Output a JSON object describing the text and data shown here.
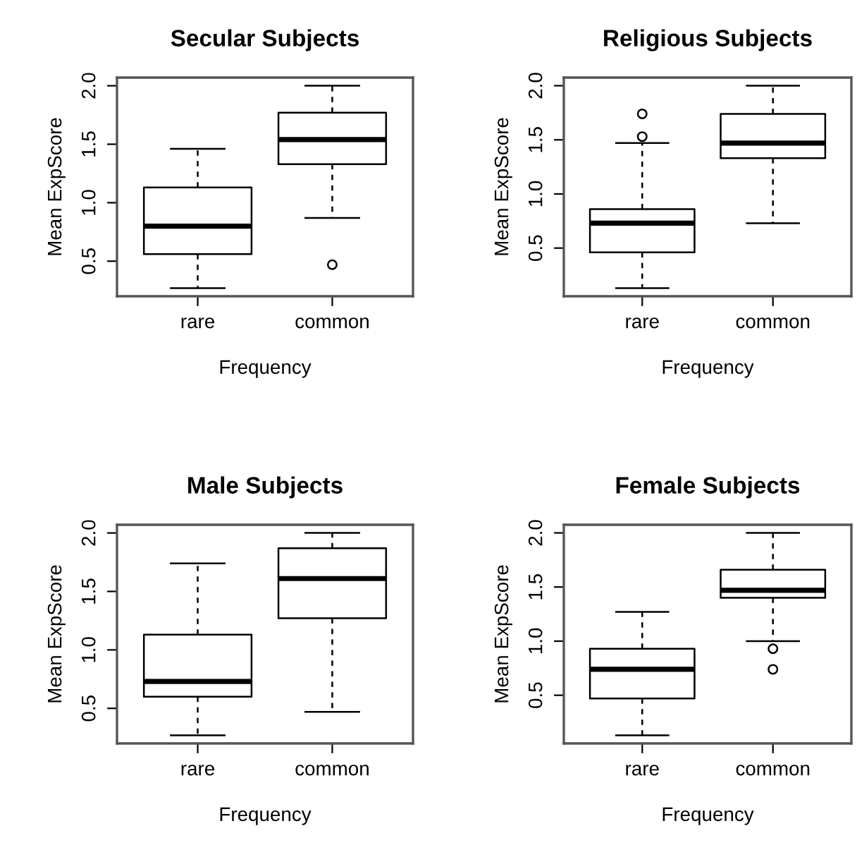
{
  "chart_data": [
    {
      "type": "box",
      "title": "Secular Subjects",
      "xlabel": "Frequency",
      "ylabel": "Mean ExpScore",
      "categories": [
        "rare",
        "common"
      ],
      "ylim": [
        0.2,
        2.07
      ],
      "yticks": [
        {
          "value": 0.5,
          "label": "0.5"
        },
        {
          "value": 1,
          "label": "1.0"
        },
        {
          "value": 1.5,
          "label": "1.5"
        },
        {
          "value": 2,
          "label": "2.0"
        }
      ],
      "grid": false,
      "boxes": [
        {
          "low": 0.27,
          "q1": 0.56,
          "median": 0.8,
          "q3": 1.13,
          "high": 1.46
        },
        {
          "low": 0.87,
          "q1": 1.33,
          "median": 1.54,
          "q3": 1.77,
          "high": 2.0,
          "outliers": [
            0.47
          ]
        }
      ]
    },
    {
      "type": "box",
      "title": "Religious Subjects",
      "xlabel": "Frequency",
      "ylabel": "Mean ExpScore",
      "categories": [
        "rare",
        "common"
      ],
      "ylim": [
        0.055,
        2.075
      ],
      "yticks": [
        {
          "value": 0.5,
          "label": "0.5"
        },
        {
          "value": 1,
          "label": "1.0"
        },
        {
          "value": 1.5,
          "label": "1.5"
        },
        {
          "value": 2,
          "label": "2.0"
        }
      ],
      "grid": false,
      "boxes": [
        {
          "low": 0.13,
          "q1": 0.46,
          "median": 0.73,
          "q3": 0.86,
          "high": 1.47,
          "outliers": [
            1.53,
            1.74
          ]
        },
        {
          "low": 0.73,
          "q1": 1.33,
          "median": 1.47,
          "q3": 1.74,
          "high": 2.0
        }
      ]
    },
    {
      "type": "box",
      "title": "Male Subjects",
      "xlabel": "Frequency",
      "ylabel": "Mean ExpScore",
      "categories": [
        "rare",
        "common"
      ],
      "ylim": [
        0.2,
        2.07
      ],
      "yticks": [
        {
          "value": 0.5,
          "label": "0.5"
        },
        {
          "value": 1,
          "label": "1.0"
        },
        {
          "value": 1.5,
          "label": "1.5"
        },
        {
          "value": 2,
          "label": "2.0"
        }
      ],
      "grid": false,
      "boxes": [
        {
          "low": 0.27,
          "q1": 0.6,
          "median": 0.73,
          "q3": 1.13,
          "high": 1.74
        },
        {
          "low": 0.47,
          "q1": 1.27,
          "median": 1.61,
          "q3": 1.87,
          "high": 2.0
        }
      ]
    },
    {
      "type": "box",
      "title": "Female Subjects",
      "xlabel": "Frequency",
      "ylabel": "Mean ExpScore",
      "categories": [
        "rare",
        "common"
      ],
      "ylim": [
        0.055,
        2.075
      ],
      "yticks": [
        {
          "value": 0.5,
          "label": "0.5"
        },
        {
          "value": 1,
          "label": "1.0"
        },
        {
          "value": 1.5,
          "label": "1.5"
        },
        {
          "value": 2,
          "label": "2.0"
        }
      ],
      "grid": false,
      "boxes": [
        {
          "low": 0.13,
          "q1": 0.47,
          "median": 0.74,
          "q3": 0.93,
          "high": 1.27
        },
        {
          "low": 1.0,
          "q1": 1.4,
          "median": 1.47,
          "q3": 1.66,
          "high": 2.0,
          "outliers": [
            0.74,
            0.93
          ]
        }
      ]
    }
  ]
}
